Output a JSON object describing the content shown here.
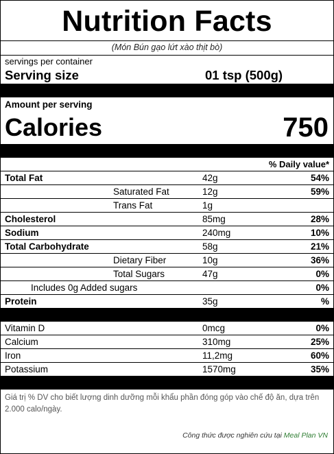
{
  "header": {
    "title": "Nutrition Facts",
    "subtitle": "(Món Bún gạo lứt xào thịt bò)"
  },
  "serving": {
    "servings_per_container": "servings per container",
    "size_label": "Serving size",
    "size_value": "01 tsp  (500g)"
  },
  "amount_label": "Amount per serving",
  "calories": {
    "label": "Calories",
    "value": "750"
  },
  "dv_header": "% Daily value*",
  "nutrients": [
    {
      "name": "Total Fat",
      "amount": "42g",
      "dv": "54%"
    },
    {
      "name": "Saturated Fat",
      "amount": "12g",
      "dv": "59%"
    },
    {
      "name": "Trans Fat",
      "amount": "1g",
      "dv": ""
    },
    {
      "name": "Cholesterol",
      "amount": "85mg",
      "dv": "28%"
    },
    {
      "name": "Sodium",
      "amount": "240mg",
      "dv": "10%"
    },
    {
      "name": "Total Carbohydrate",
      "amount": "58g",
      "dv": "21%"
    },
    {
      "name": "Dietary Fiber",
      "amount": "10g",
      "dv": "36%"
    },
    {
      "name": "Total Sugars",
      "amount": "47g",
      "dv": "0%"
    },
    {
      "name": "Includes 0g Added sugars",
      "amount": "",
      "dv": "0%"
    },
    {
      "name": "Protein",
      "amount": "35g",
      "dv": "%"
    }
  ],
  "vitamins": [
    {
      "name": "Vitamin D",
      "amount": "0mcg",
      "dv": "0%"
    },
    {
      "name": "Calcium",
      "amount": "310mg",
      "dv": "25%"
    },
    {
      "name": "Iron",
      "amount": "11,2mg",
      "dv": "60%"
    },
    {
      "name": "Potassium",
      "amount": "1570mg",
      "dv": "35%"
    }
  ],
  "footnote": "Giá trị % DV cho biết lượng dinh dưỡng mỗi khẩu phần đóng góp vào chế độ ăn, dựa trên 2.000 calo/ngày.",
  "credit": {
    "text": "Công thức được nghiên cứu tại ",
    "link": "Meal Plan VN"
  },
  "colors": {
    "bars": "#000000",
    "credit_link": "#2e7d32"
  }
}
